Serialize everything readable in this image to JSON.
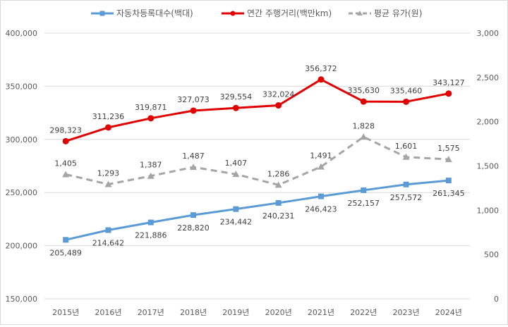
{
  "chart_data": {
    "type": "line",
    "categories": [
      "2015년",
      "2016년",
      "2017년",
      "2018년",
      "2019년",
      "2020년",
      "2021년",
      "2022년",
      "2023년",
      "2024년"
    ],
    "y_left": {
      "range": [
        150000,
        400000
      ],
      "ticks": [
        150000,
        200000,
        250000,
        300000,
        350000,
        400000
      ],
      "tick_labels": [
        "150,000",
        "200,000",
        "250,000",
        "300,000",
        "350,000",
        "400,000"
      ]
    },
    "y_right": {
      "range": [
        0,
        3000
      ],
      "ticks": [
        0,
        500,
        1000,
        1500,
        2000,
        2500,
        3000
      ],
      "tick_labels": [
        "0",
        "500",
        "1,000",
        "1,500",
        "2,000",
        "2,500",
        "3,000"
      ]
    },
    "grid": true,
    "legend_placement": "top",
    "series": [
      {
        "name": "자동차등록대수(백대)",
        "axis": "left",
        "color": "#5b9bd5",
        "style": "solid",
        "marker": "square",
        "values": [
          205489,
          214642,
          221886,
          228820,
          234442,
          240231,
          246423,
          252157,
          257572,
          261345
        ],
        "labels": [
          "205,489",
          "214,642",
          "221,886",
          "228,820",
          "234,442",
          "240,231",
          "246,423",
          "252,157",
          "257,572",
          "261,345"
        ],
        "label_pos": "below"
      },
      {
        "name": "연간 주행거리(백만km)",
        "axis": "left",
        "color": "#e00000",
        "style": "solid",
        "marker": "circle",
        "values": [
          298323,
          311236,
          319871,
          327073,
          329554,
          332024,
          356372,
          335630,
          335460,
          343127
        ],
        "labels": [
          "298,323",
          "311,236",
          "319,871",
          "327,073",
          "329,554",
          "332,024",
          "356,372",
          "335,630",
          "335,460",
          "343,127"
        ],
        "label_pos": "above"
      },
      {
        "name": "평균 유가(원)",
        "axis": "right",
        "color": "#a5a5a5",
        "style": "dashed",
        "marker": "triangle",
        "values": [
          1405,
          1293,
          1387,
          1487,
          1407,
          1286,
          1491,
          1828,
          1601,
          1575
        ],
        "labels": [
          "1,405",
          "1,293",
          "1,387",
          "1,487",
          "1,407",
          "1,286",
          "1,491",
          "1,828",
          "1,601",
          "1,575"
        ],
        "label_pos": "above"
      }
    ]
  }
}
